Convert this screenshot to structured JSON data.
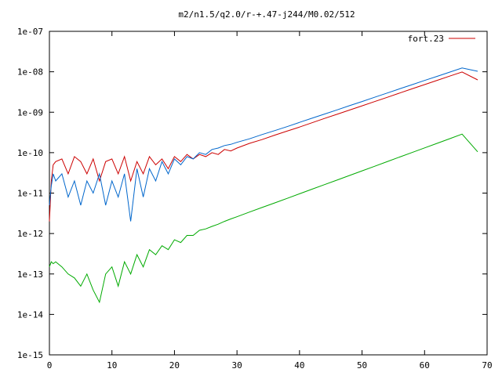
{
  "chart_data": {
    "type": "line",
    "title": "m2/n1.5/q2.0/r-+.47-j244/M0.02/512",
    "xlabel": "",
    "ylabel": "",
    "xlim": [
      0,
      70
    ],
    "ylim": [
      1e-15,
      1e-07
    ],
    "y_scale": "log",
    "x_ticks": [
      0,
      10,
      20,
      30,
      40,
      50,
      60,
      70
    ],
    "x_tick_labels": [
      "0",
      "10",
      "20",
      "30",
      "40",
      "50",
      "60",
      "70"
    ],
    "y_ticks": [
      1e-15,
      1e-14,
      1e-13,
      1e-12,
      1e-11,
      1e-10,
      1e-09,
      1e-08,
      1e-07
    ],
    "y_tick_labels": [
      "1e-15",
      "1e-14",
      "1e-13",
      "1e-12",
      "1e-11",
      "1e-10",
      "1e-09",
      "1e-08",
      "1e-07"
    ],
    "grid": false,
    "legend_position": "top-right",
    "series": [
      {
        "name": "fort.23",
        "color": "#cc0000",
        "x": [
          0.0,
          0.3,
          0.6,
          1,
          2,
          3,
          4,
          5,
          6,
          7,
          8,
          9,
          10,
          11,
          12,
          13,
          14,
          15,
          16,
          17,
          18,
          19,
          20,
          21,
          22,
          23,
          24,
          25,
          26,
          27,
          28,
          29,
          30,
          32,
          34,
          36,
          38,
          40,
          42,
          44,
          46,
          48,
          50,
          52,
          54,
          56,
          58,
          60,
          62,
          64,
          66,
          68.5
        ],
        "y": [
          2e-12,
          2e-11,
          5e-11,
          6e-11,
          7e-11,
          3e-11,
          8e-11,
          6e-11,
          3e-11,
          7e-11,
          2e-11,
          6e-11,
          7e-11,
          3e-11,
          8e-11,
          2e-11,
          6e-11,
          3e-11,
          8e-11,
          5e-11,
          7e-11,
          4e-11,
          8e-11,
          6e-11,
          9e-11,
          7e-11,
          9e-11,
          8e-11,
          1e-10,
          9e-11,
          1.2e-10,
          1.1e-10,
          1.3e-10,
          1.7e-10,
          2.1e-10,
          2.7e-10,
          3.4e-10,
          4.3e-10,
          5.5e-10,
          7e-10,
          8.9e-10,
          1.13e-09,
          1.44e-09,
          1.83e-09,
          2.33e-09,
          2.97e-09,
          3.78e-09,
          4.81e-09,
          6.12e-09,
          7.8e-09,
          9.9e-09,
          6.3e-09
        ]
      },
      {
        "color": "#0066cc",
        "x": [
          0.0,
          0.3,
          0.6,
          1,
          2,
          3,
          4,
          5,
          6,
          7,
          8,
          9,
          10,
          11,
          12,
          13,
          14,
          15,
          16,
          17,
          18,
          19,
          20,
          21,
          22,
          23,
          24,
          25,
          26,
          27,
          28,
          29,
          30,
          32,
          34,
          36,
          38,
          40,
          42,
          44,
          46,
          48,
          50,
          52,
          54,
          56,
          58,
          60,
          62,
          64,
          66,
          68.5
        ],
        "y": [
          5e-12,
          1.5e-11,
          3e-11,
          2e-11,
          3e-11,
          8e-12,
          2e-11,
          5e-12,
          2e-11,
          1e-11,
          3e-11,
          5e-12,
          2e-11,
          8e-12,
          3e-11,
          2e-12,
          4e-11,
          8e-12,
          4e-11,
          2e-11,
          6e-11,
          3e-11,
          7e-11,
          5e-11,
          8e-11,
          7e-11,
          1e-10,
          9e-11,
          1.2e-10,
          1.3e-10,
          1.5e-10,
          1.6e-10,
          1.8e-10,
          2.2e-10,
          2.8e-10,
          3.5e-10,
          4.4e-10,
          5.6e-10,
          7.1e-10,
          9e-10,
          1.14e-09,
          1.45e-09,
          1.84e-09,
          2.34e-09,
          2.97e-09,
          3.78e-09,
          4.8e-09,
          6.1e-09,
          7.7e-09,
          9.8e-09,
          1.24e-08,
          1.03e-08
        ]
      },
      {
        "color": "#00aa00",
        "x": [
          0.0,
          0.3,
          0.6,
          1,
          2,
          3,
          4,
          5,
          6,
          7,
          8,
          9,
          10,
          11,
          12,
          13,
          14,
          15,
          16,
          17,
          18,
          19,
          20,
          21,
          22,
          23,
          24,
          25,
          26,
          27,
          28,
          29,
          30,
          32,
          34,
          36,
          38,
          40,
          42,
          44,
          46,
          48,
          50,
          52,
          54,
          56,
          58,
          60,
          62,
          64,
          66,
          68.5
        ],
        "y": [
          1.5e-13,
          2e-13,
          1.8e-13,
          2e-13,
          1.5e-13,
          1e-13,
          8e-14,
          5e-14,
          1e-13,
          4e-14,
          2e-14,
          1e-13,
          1.5e-13,
          5e-14,
          2e-13,
          1e-13,
          3e-13,
          1.5e-13,
          4e-13,
          3e-13,
          5e-13,
          4e-13,
          7e-13,
          6e-13,
          9e-13,
          9e-13,
          1.2e-12,
          1.3e-12,
          1.5e-12,
          1.7e-12,
          2e-12,
          2.3e-12,
          2.6e-12,
          3.4e-12,
          4.4e-12,
          5.7e-12,
          7.4e-12,
          9.6e-12,
          1.25e-11,
          1.62e-11,
          2.1e-11,
          2.73e-11,
          3.55e-11,
          4.6e-11,
          5.98e-11,
          7.77e-11,
          1.01e-10,
          1.31e-10,
          1.7e-10,
          2.21e-10,
          2.87e-10,
          1.05e-10
        ]
      }
    ]
  }
}
